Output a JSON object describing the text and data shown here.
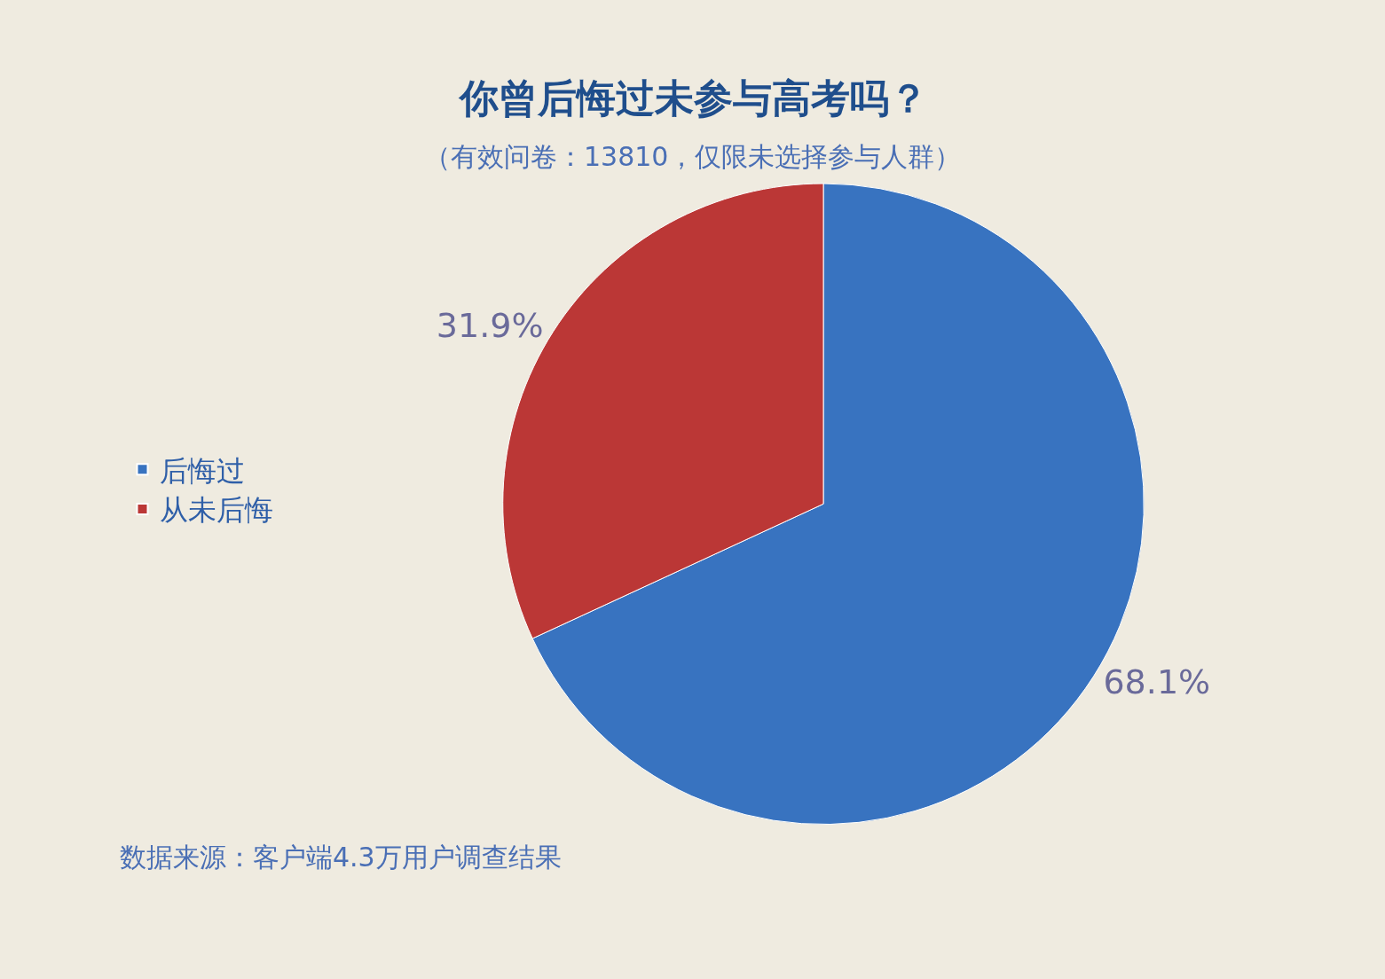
{
  "chart_data": {
    "type": "pie",
    "title": "你曾后悔过未参与高考吗？",
    "subtitle": "（有效问卷：13810，仅限未选择参与人群）",
    "categories": [
      "后悔过",
      "从未后悔"
    ],
    "values": [
      68.1,
      31.9
    ],
    "colors": [
      "#3873c0",
      "#bb3736"
    ],
    "value_labels": [
      "68.1%",
      "31.9%"
    ],
    "legend": "left",
    "annotations": [
      "数据来源：客户端4.3万用户调查结果"
    ]
  }
}
